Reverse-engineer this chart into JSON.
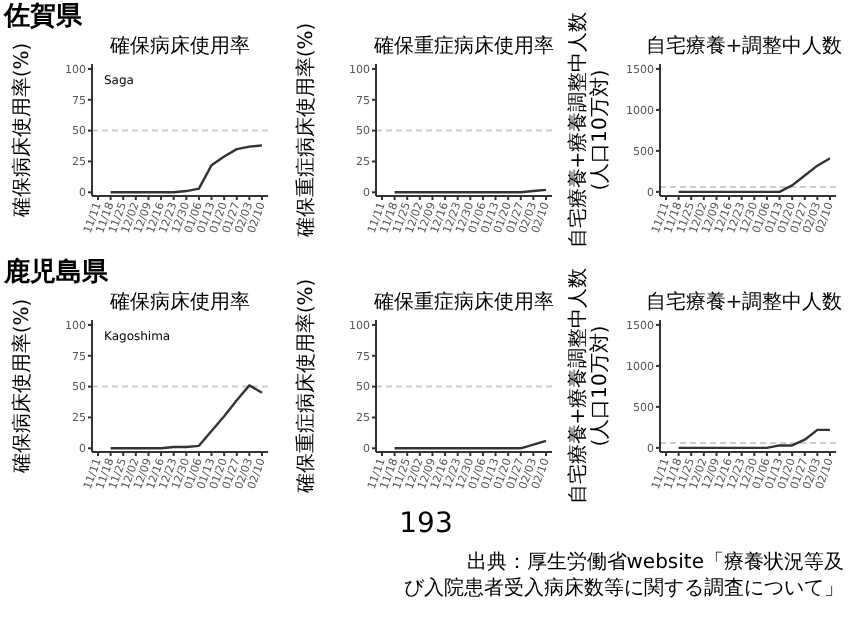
{
  "chart_data": [
    {
      "type": "line",
      "title": "確保病床使用率",
      "ylabel": "確保病床使用率(%)",
      "categories": [
        "11/11",
        "11/18",
        "11/25",
        "12/02",
        "12/09",
        "12/16",
        "12/23",
        "12/30",
        "01/06",
        "01/13",
        "01/20",
        "01/27",
        "02/03",
        "02/10"
      ],
      "values": [
        null,
        0,
        0,
        0,
        0,
        0,
        0,
        1,
        3,
        22,
        29,
        35,
        37,
        38
      ],
      "color": "#333333",
      "ylim": [
        -3,
        104
      ],
      "yticks": [
        0,
        25,
        50,
        75,
        100
      ],
      "ref_lines": [
        {
          "axis": "y",
          "value": 50,
          "color": "#cccccc",
          "line_style": "dashed"
        }
      ],
      "annotations": [
        "佐賀県",
        "Saga"
      ]
    },
    {
      "type": "line",
      "title": "確保重症病床使用率",
      "ylabel": "確保重症病床使用率(%)",
      "categories": [
        "11/11",
        "11/18",
        "11/25",
        "12/02",
        "12/09",
        "12/16",
        "12/23",
        "12/30",
        "01/06",
        "01/13",
        "01/20",
        "01/27",
        "02/03",
        "02/10"
      ],
      "values": [
        null,
        0,
        0,
        0,
        0,
        0,
        0,
        0,
        0,
        0,
        0,
        0,
        1,
        2
      ],
      "color": "#333333",
      "ylim": [
        -3,
        104
      ],
      "yticks": [
        0,
        25,
        50,
        75,
        100
      ],
      "ref_lines": [
        {
          "axis": "y",
          "value": 50,
          "color": "#cccccc",
          "line_style": "dashed"
        }
      ]
    },
    {
      "type": "line",
      "title": "自宅療養+調整中人数",
      "ylabel": "自宅療養+療養調整中人数(人口10万対)",
      "categories": [
        "11/11",
        "11/18",
        "11/25",
        "12/02",
        "12/09",
        "12/16",
        "12/23",
        "12/30",
        "01/06",
        "01/13",
        "01/20",
        "01/27",
        "02/03",
        "02/10"
      ],
      "values": [
        null,
        0,
        0,
        0,
        0,
        0,
        0,
        0,
        0,
        0,
        80,
        200,
        320,
        410
      ],
      "color": "#333333",
      "ylim": [
        -50,
        1560
      ],
      "yticks": [
        0,
        500,
        1000,
        1500
      ],
      "ref_lines": [
        {
          "axis": "y",
          "value": 60,
          "color": "#cccccc",
          "line_style": "dashed"
        }
      ]
    },
    {
      "type": "line",
      "title": "確保病床使用率",
      "ylabel": "確保病床使用率(%)",
      "categories": [
        "11/11",
        "11/18",
        "11/25",
        "12/02",
        "12/09",
        "12/16",
        "12/23",
        "12/30",
        "01/06",
        "01/13",
        "01/20",
        "01/27",
        "02/03",
        "02/10"
      ],
      "values": [
        null,
        0,
        0,
        0,
        0,
        0,
        1,
        1,
        2,
        14,
        26,
        39,
        51,
        45
      ],
      "color": "#333333",
      "ylim": [
        -3,
        104
      ],
      "yticks": [
        0,
        25,
        50,
        75,
        100
      ],
      "ref_lines": [
        {
          "axis": "y",
          "value": 50,
          "color": "#cccccc",
          "line_style": "dashed"
        }
      ],
      "annotations": [
        "鹿児島県",
        "Kagoshima"
      ]
    },
    {
      "type": "line",
      "title": "確保重症病床使用率",
      "ylabel": "確保重症病床使用率(%)",
      "categories": [
        "11/11",
        "11/18",
        "11/25",
        "12/02",
        "12/09",
        "12/16",
        "12/23",
        "12/30",
        "01/06",
        "01/13",
        "01/20",
        "01/27",
        "02/03",
        "02/10"
      ],
      "values": [
        null,
        0,
        0,
        0,
        0,
        0,
        0,
        0,
        0,
        0,
        0,
        0,
        3,
        6
      ],
      "color": "#333333",
      "ylim": [
        -3,
        104
      ],
      "yticks": [
        0,
        25,
        50,
        75,
        100
      ],
      "ref_lines": [
        {
          "axis": "y",
          "value": 50,
          "color": "#cccccc",
          "line_style": "dashed"
        }
      ],
      "annotations": [
        "193"
      ]
    },
    {
      "type": "line",
      "title": "自宅療養+調整中人数",
      "ylabel": "自宅療養+療養調整中人数(人口10万対)",
      "categories": [
        "11/11",
        "11/18",
        "11/25",
        "12/02",
        "12/09",
        "12/16",
        "12/23",
        "12/30",
        "01/06",
        "01/13",
        "01/20",
        "01/27",
        "02/03",
        "02/10"
      ],
      "values": [
        null,
        0,
        0,
        0,
        0,
        0,
        0,
        0,
        0,
        30,
        30,
        100,
        220,
        220
      ],
      "color": "#333333",
      "ylim": [
        -50,
        1560
      ],
      "yticks": [
        0,
        500,
        1000,
        1500
      ],
      "ref_lines": [
        {
          "axis": "y",
          "value": 60,
          "color": "#cccccc",
          "line_style": "dashed"
        }
      ],
      "annotations": [
        "出典：厚生労働省website「療養状況等及び入院患者受入病床数等に関する調査について」"
      ]
    }
  ]
}
